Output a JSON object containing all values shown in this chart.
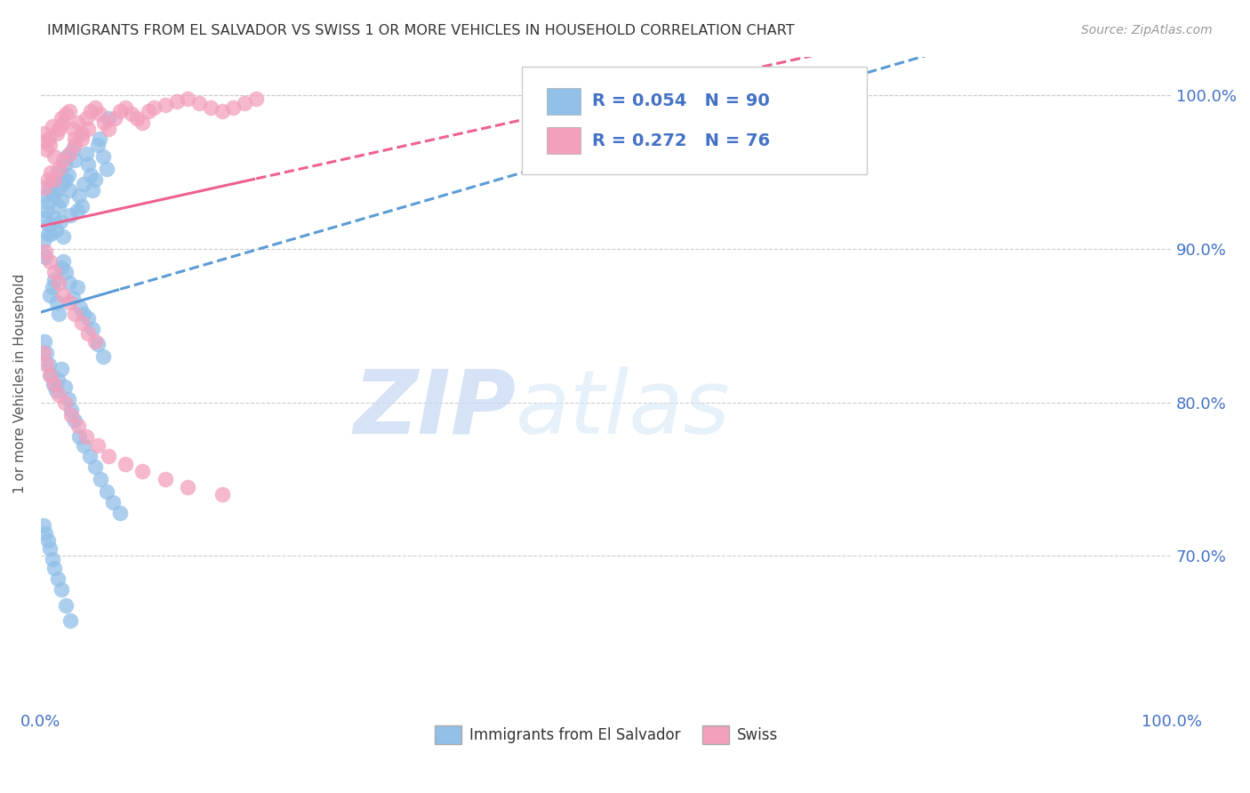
{
  "title": "IMMIGRANTS FROM EL SALVADOR VS SWISS 1 OR MORE VEHICLES IN HOUSEHOLD CORRELATION CHART",
  "source": "Source: ZipAtlas.com",
  "ylabel": "1 or more Vehicles in Household",
  "legend_label1": "Immigrants from El Salvador",
  "legend_label2": "Swiss",
  "r1": 0.054,
  "n1": 90,
  "r2": 0.272,
  "n2": 76,
  "color1": "#92C0E8",
  "color2": "#F2A0BC",
  "trendline1_color": "#5B9BD5",
  "trendline2_color": "#EE6090",
  "watermark_zip": "ZIP",
  "watermark_atlas": "atlas",
  "blue_color": "#4472C4",
  "xlim": [
    0.0,
    1.0
  ],
  "ylim": [
    0.6,
    1.025
  ],
  "ytick_vals": [
    0.7,
    0.8,
    0.9,
    1.0
  ],
  "ytick_labels": [
    "70.0%",
    "80.0%",
    "90.0%",
    "100.0%"
  ],
  "scatter1_x": [
    0.003,
    0.004,
    0.005,
    0.006,
    0.007,
    0.008,
    0.009,
    0.01,
    0.011,
    0.012,
    0.013,
    0.014,
    0.015,
    0.016,
    0.017,
    0.018,
    0.019,
    0.02,
    0.021,
    0.022,
    0.023,
    0.024,
    0.025,
    0.026,
    0.028,
    0.03,
    0.032,
    0.034,
    0.036,
    0.038,
    0.04,
    0.042,
    0.044,
    0.046,
    0.048,
    0.05,
    0.052,
    0.055,
    0.058,
    0.06,
    0.002,
    0.004,
    0.006,
    0.008,
    0.01,
    0.012,
    0.014,
    0.016,
    0.018,
    0.02,
    0.022,
    0.025,
    0.028,
    0.032,
    0.035,
    0.038,
    0.042,
    0.046,
    0.05,
    0.055,
    0.003,
    0.005,
    0.007,
    0.009,
    0.011,
    0.013,
    0.015,
    0.018,
    0.021,
    0.024,
    0.027,
    0.03,
    0.034,
    0.038,
    0.043,
    0.048,
    0.053,
    0.058,
    0.064,
    0.07,
    0.002,
    0.004,
    0.006,
    0.008,
    0.01,
    0.012,
    0.015,
    0.018,
    0.022,
    0.026
  ],
  "scatter1_y": [
    0.935,
    0.92,
    0.925,
    0.93,
    0.915,
    0.94,
    0.91,
    0.945,
    0.935,
    0.92,
    0.912,
    0.938,
    0.95,
    0.928,
    0.918,
    0.932,
    0.942,
    0.908,
    0.955,
    0.945,
    0.96,
    0.948,
    0.938,
    0.922,
    0.965,
    0.958,
    0.925,
    0.935,
    0.928,
    0.942,
    0.962,
    0.955,
    0.948,
    0.938,
    0.945,
    0.968,
    0.972,
    0.96,
    0.952,
    0.985,
    0.905,
    0.895,
    0.91,
    0.87,
    0.875,
    0.88,
    0.865,
    0.858,
    0.888,
    0.892,
    0.885,
    0.878,
    0.868,
    0.875,
    0.862,
    0.858,
    0.855,
    0.848,
    0.838,
    0.83,
    0.84,
    0.832,
    0.825,
    0.818,
    0.812,
    0.808,
    0.815,
    0.822,
    0.81,
    0.802,
    0.795,
    0.788,
    0.778,
    0.772,
    0.765,
    0.758,
    0.75,
    0.742,
    0.735,
    0.728,
    0.72,
    0.715,
    0.71,
    0.705,
    0.698,
    0.692,
    0.685,
    0.678,
    0.668,
    0.658
  ],
  "scatter2_x": [
    0.002,
    0.003,
    0.005,
    0.007,
    0.008,
    0.01,
    0.012,
    0.014,
    0.016,
    0.018,
    0.02,
    0.022,
    0.025,
    0.028,
    0.03,
    0.033,
    0.036,
    0.04,
    0.044,
    0.048,
    0.052,
    0.056,
    0.06,
    0.065,
    0.07,
    0.075,
    0.08,
    0.085,
    0.09,
    0.095,
    0.1,
    0.11,
    0.12,
    0.13,
    0.14,
    0.15,
    0.16,
    0.17,
    0.18,
    0.19,
    0.003,
    0.006,
    0.009,
    0.012,
    0.016,
    0.02,
    0.025,
    0.03,
    0.036,
    0.042,
    0.004,
    0.008,
    0.012,
    0.016,
    0.02,
    0.025,
    0.03,
    0.036,
    0.042,
    0.048,
    0.002,
    0.005,
    0.008,
    0.012,
    0.016,
    0.021,
    0.027,
    0.033,
    0.04,
    0.05,
    0.06,
    0.075,
    0.09,
    0.11,
    0.13,
    0.16
  ],
  "scatter2_y": [
    0.975,
    0.97,
    0.965,
    0.972,
    0.968,
    0.98,
    0.96,
    0.975,
    0.978,
    0.985,
    0.982,
    0.988,
    0.99,
    0.978,
    0.972,
    0.982,
    0.975,
    0.985,
    0.99,
    0.992,
    0.988,
    0.982,
    0.978,
    0.985,
    0.99,
    0.992,
    0.988,
    0.985,
    0.982,
    0.99,
    0.992,
    0.994,
    0.996,
    0.998,
    0.995,
    0.992,
    0.99,
    0.992,
    0.995,
    0.998,
    0.94,
    0.945,
    0.95,
    0.945,
    0.952,
    0.958,
    0.962,
    0.968,
    0.972,
    0.978,
    0.898,
    0.892,
    0.885,
    0.878,
    0.87,
    0.865,
    0.858,
    0.852,
    0.845,
    0.84,
    0.832,
    0.825,
    0.818,
    0.812,
    0.805,
    0.8,
    0.792,
    0.785,
    0.778,
    0.772,
    0.765,
    0.76,
    0.755,
    0.75,
    0.745,
    0.74
  ]
}
